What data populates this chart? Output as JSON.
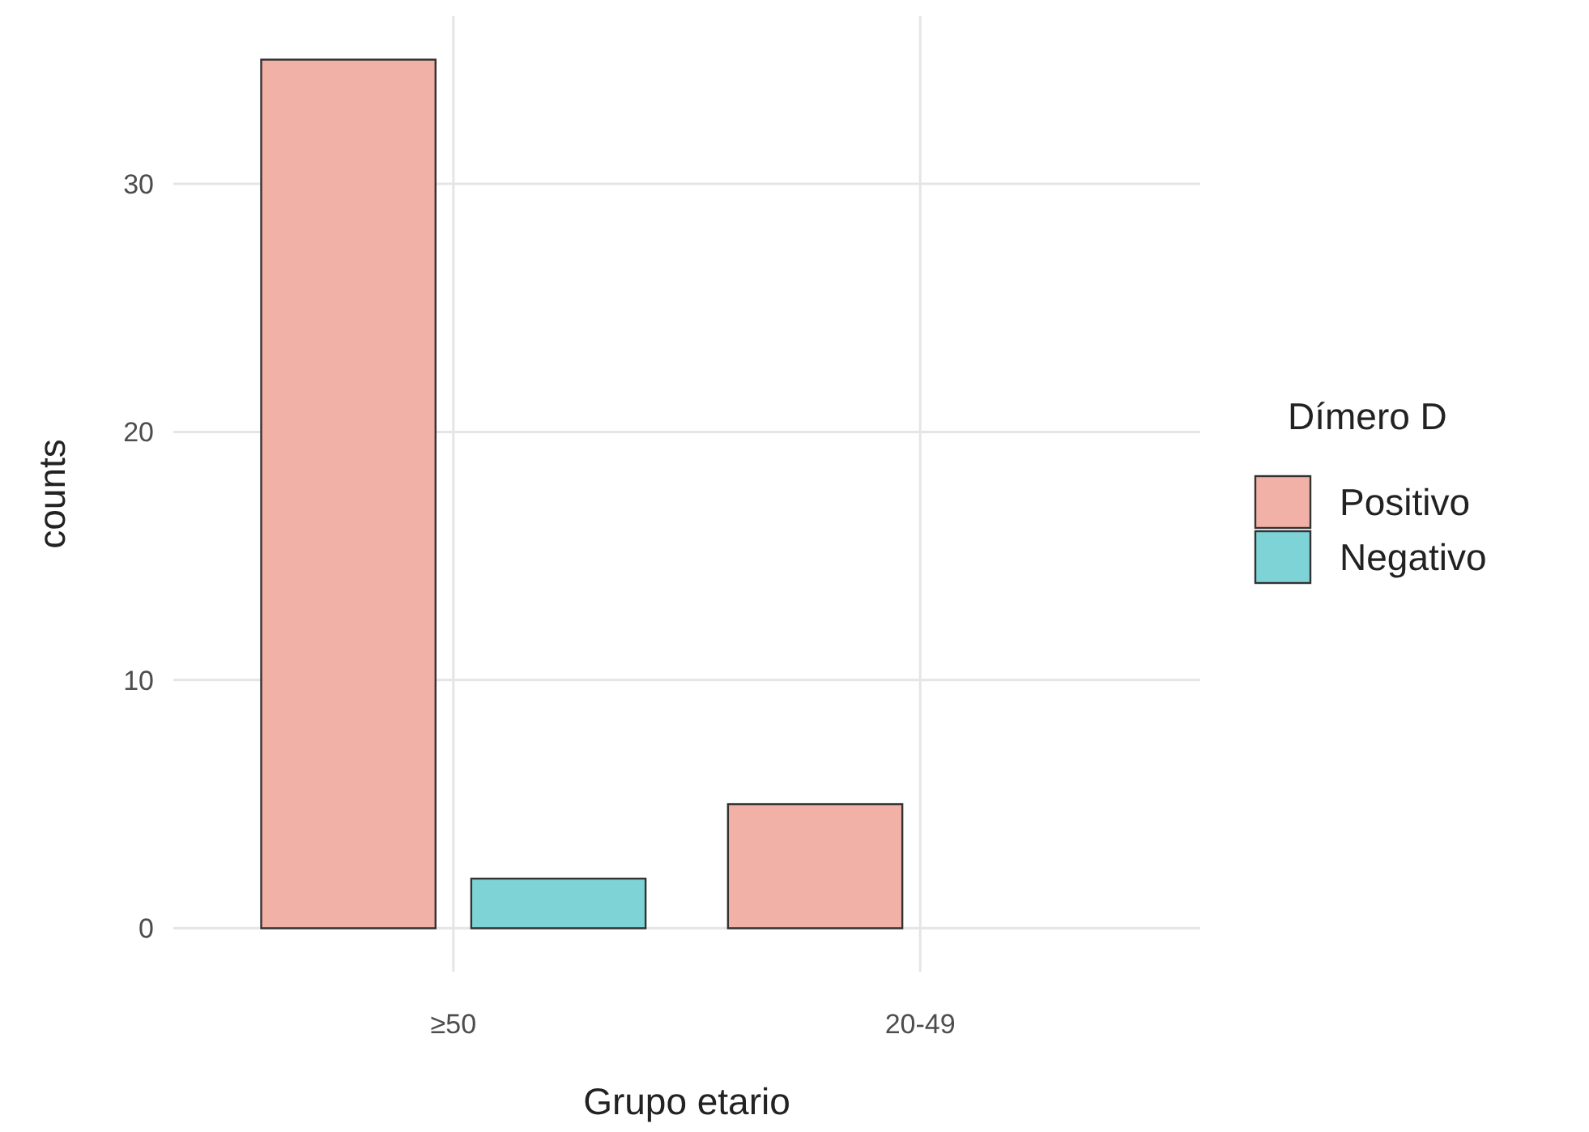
{
  "chart_data": {
    "type": "bar",
    "xlabel": "Grupo etario",
    "ylabel": "counts",
    "legend_title": "Dímero D",
    "categories": [
      "≥50",
      "20-49"
    ],
    "series": [
      {
        "name": "Positivo",
        "color": "#f2b1a6",
        "values": [
          35,
          5
        ]
      },
      {
        "name": "Negativo",
        "color": "#7dd3d6",
        "values": [
          2,
          0
        ]
      }
    ],
    "ylim": [
      -1.75,
      36.75
    ],
    "yticks": [
      0,
      10,
      20,
      30
    ],
    "grid": true,
    "legend": "right"
  }
}
